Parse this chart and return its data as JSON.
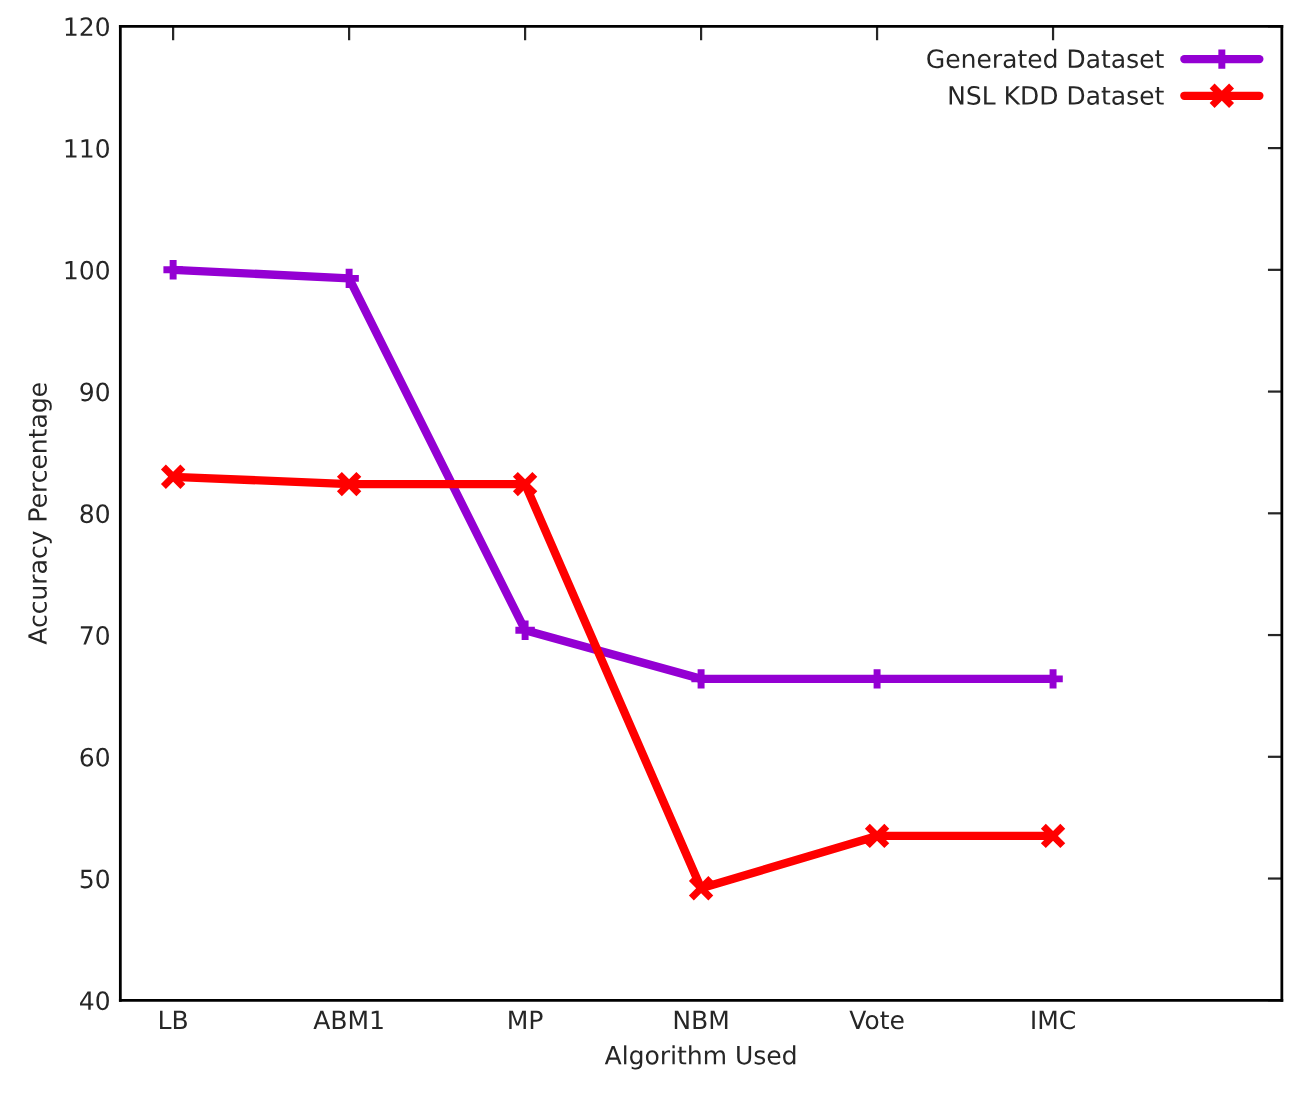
{
  "chart_data": {
    "type": "line",
    "xlabel": "Algorithm Used",
    "ylabel": "Accuracy Percentage",
    "categories": [
      "LB",
      "ABM1",
      "MP",
      "NBM",
      "Vote",
      "IMC"
    ],
    "series": [
      {
        "name": "Generated Dataset",
        "color": "#9400d3",
        "marker": "plus",
        "values": [
          100.0,
          99.3,
          70.4,
          66.4,
          66.4,
          66.4
        ]
      },
      {
        "name": "NSL KDD Dataset",
        "color": "#ff0000",
        "marker": "cross",
        "values": [
          83.0,
          82.4,
          82.4,
          49.2,
          53.5,
          53.5
        ]
      }
    ],
    "ylim": [
      40,
      120
    ],
    "yticks": [
      40,
      50,
      60,
      70,
      80,
      90,
      100,
      110,
      120
    ],
    "grid": false,
    "legend": "top right",
    "line_style": "solid"
  }
}
